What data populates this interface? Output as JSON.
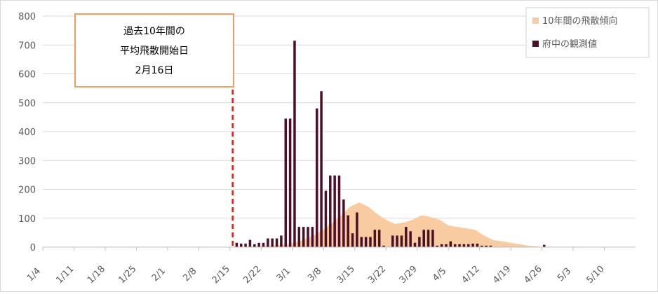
{
  "chart_data": {
    "type": "bar",
    "x_tick_labels": [
      "1/4",
      "1/11",
      "1/18",
      "1/25",
      "2/1",
      "2/8",
      "2/15",
      "2/22",
      "3/1",
      "3/8",
      "3/15",
      "3/22",
      "3/29",
      "4/5",
      "4/12",
      "4/19",
      "4/26",
      "5/3",
      "5/10"
    ],
    "y_tick_labels": [
      "0",
      "100",
      "200",
      "300",
      "400",
      "500",
      "600",
      "700",
      "800"
    ],
    "ylim": [
      0,
      800
    ],
    "grid": true,
    "legend_position": "top-right",
    "annotation": {
      "lines": [
        "過去10年間の",
        "平均飛散開始日",
        "2月16日"
      ],
      "marker_date": "2/16"
    },
    "series": [
      {
        "name": "10年間の飛散傾向",
        "kind": "area",
        "color": "#f8cba0",
        "x": [
          "2/16",
          "2/20",
          "2/24",
          "2/28",
          "3/2",
          "3/4",
          "3/6",
          "3/8",
          "3/10",
          "3/12",
          "3/14",
          "3/16",
          "3/18",
          "3/20",
          "3/22",
          "3/24",
          "3/26",
          "3/28",
          "3/30",
          "4/1",
          "4/3",
          "4/5",
          "4/7",
          "4/9",
          "4/11",
          "4/13",
          "4/15",
          "4/17",
          "4/19",
          "4/21",
          "4/23",
          "4/25",
          "4/27"
        ],
        "values": [
          0,
          2,
          5,
          10,
          18,
          28,
          42,
          60,
          85,
          110,
          140,
          155,
          140,
          115,
          95,
          80,
          85,
          95,
          110,
          105,
          95,
          75,
          70,
          65,
          60,
          40,
          25,
          20,
          15,
          10,
          5,
          2,
          0
        ]
      },
      {
        "name": "府中の観測値",
        "kind": "bar",
        "color": "#4d0f28",
        "x": [
          "2/16",
          "2/17",
          "2/18",
          "2/19",
          "2/20",
          "2/21",
          "2/22",
          "2/23",
          "2/24",
          "2/25",
          "2/26",
          "2/27",
          "2/28",
          "3/1",
          "3/2",
          "3/3",
          "3/4",
          "3/5",
          "3/6",
          "3/7",
          "3/8",
          "3/9",
          "3/10",
          "3/11",
          "3/12",
          "3/13",
          "3/14",
          "3/15",
          "3/16",
          "3/17",
          "3/18",
          "3/19",
          "3/20",
          "3/21",
          "3/22",
          "3/23",
          "3/24",
          "3/25",
          "3/26",
          "3/27",
          "3/28",
          "3/29",
          "3/30",
          "3/31",
          "4/1",
          "4/2",
          "4/3",
          "4/4",
          "4/5",
          "4/6",
          "4/7",
          "4/8",
          "4/9",
          "4/10",
          "4/11",
          "4/12",
          "4/13",
          "4/14",
          "4/15",
          "4/16",
          "4/17",
          "4/18",
          "4/19",
          "4/20",
          "4/21",
          "4/22",
          "4/23",
          "4/24",
          "4/25",
          "4/26"
        ],
        "values": [
          15,
          12,
          12,
          25,
          10,
          15,
          15,
          30,
          30,
          30,
          40,
          445,
          445,
          715,
          70,
          70,
          70,
          70,
          480,
          540,
          195,
          248,
          248,
          248,
          165,
          110,
          48,
          120,
          35,
          35,
          35,
          60,
          60,
          5,
          0,
          40,
          40,
          40,
          70,
          55,
          15,
          35,
          60,
          60,
          60,
          5,
          10,
          10,
          20,
          10,
          10,
          10,
          10,
          12,
          12,
          5,
          5,
          5,
          0,
          0,
          0,
          0,
          0,
          0,
          0,
          0,
          0,
          0,
          0,
          8
        ]
      }
    ]
  }
}
